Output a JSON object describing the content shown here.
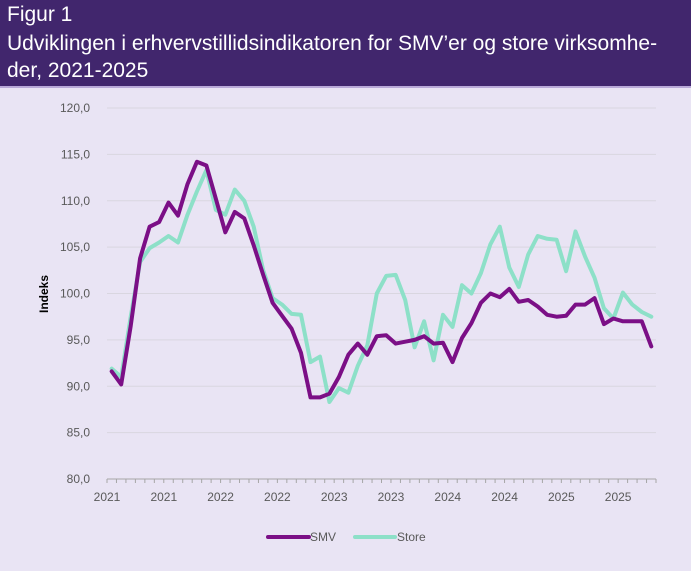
{
  "header": {
    "figure_label": "Figur 1",
    "title": "Udviklingen i erhvervstillidsindikatoren for SMV’er og store virksomhe-der, 2021-2025"
  },
  "colors": {
    "header_bg": "#41266d",
    "plot_bg": "#e9e4f4",
    "smv": "#7b0f86",
    "store": "#8de0c8",
    "grid": "#d9d6e0"
  },
  "chart_data": {
    "type": "line",
    "title": "Udviklingen i erhvervstillidsindikatoren for SMV’er og store virksomhe-der, 2021-2025",
    "xlabel": "",
    "ylabel": "Indeks",
    "ylim": [
      80,
      120
    ],
    "yticks": [
      "80,0",
      "85,0",
      "90,0",
      "95,0",
      "100,0",
      "105,0",
      "110,0",
      "115,0",
      "120,0"
    ],
    "ytick_values": [
      80,
      85,
      90,
      95,
      100,
      105,
      110,
      115,
      120
    ],
    "xtick_labels": [
      "2021",
      "2021",
      "2022",
      "2022",
      "2023",
      "2023",
      "2024",
      "2024",
      "2025",
      "2025"
    ],
    "grid": true,
    "legend_position": "bottom",
    "n_points": 58,
    "series": [
      {
        "name": "SMV",
        "values": [
          91.6,
          90.2,
          96.5,
          103.8,
          107.2,
          107.7,
          109.8,
          108.4,
          111.8,
          114.2,
          113.8,
          110.2,
          106.6,
          108.8,
          108.1,
          105.2,
          102.0,
          99.0,
          97.6,
          96.2,
          93.6,
          88.8,
          88.8,
          89.2,
          91.0,
          93.4,
          94.6,
          93.4,
          95.4,
          95.5,
          94.6,
          94.8,
          95.0,
          95.4,
          94.6,
          94.7,
          92.6,
          95.2,
          96.8,
          99.0,
          100.0,
          99.6,
          100.5,
          99.1,
          99.3,
          98.6,
          97.7,
          97.5,
          97.6,
          98.8,
          98.8,
          99.5,
          96.7,
          97.3,
          97.0,
          97.0,
          97.0,
          94.3
        ],
        "color": "#7b0f86"
      },
      {
        "name": "Store",
        "values": [
          91.9,
          91.0,
          97.5,
          103.4,
          104.9,
          105.5,
          106.2,
          105.5,
          108.5,
          111.0,
          113.3,
          109.0,
          108.5,
          111.2,
          110.0,
          107.2,
          102.5,
          99.5,
          98.8,
          97.8,
          97.7,
          92.6,
          93.2,
          88.3,
          89.8,
          89.3,
          92.2,
          94.4,
          100.0,
          101.9,
          102.0,
          99.3,
          94.2,
          97.0,
          92.8,
          97.7,
          96.4,
          100.9,
          100.0,
          102.2,
          105.3,
          107.2,
          102.8,
          100.7,
          104.2,
          106.2,
          105.9,
          105.8,
          102.4,
          106.7,
          104.0,
          101.7,
          98.4,
          97.3,
          100.1,
          98.8,
          98.0,
          97.5
        ],
        "color": "#8de0c8"
      }
    ]
  }
}
